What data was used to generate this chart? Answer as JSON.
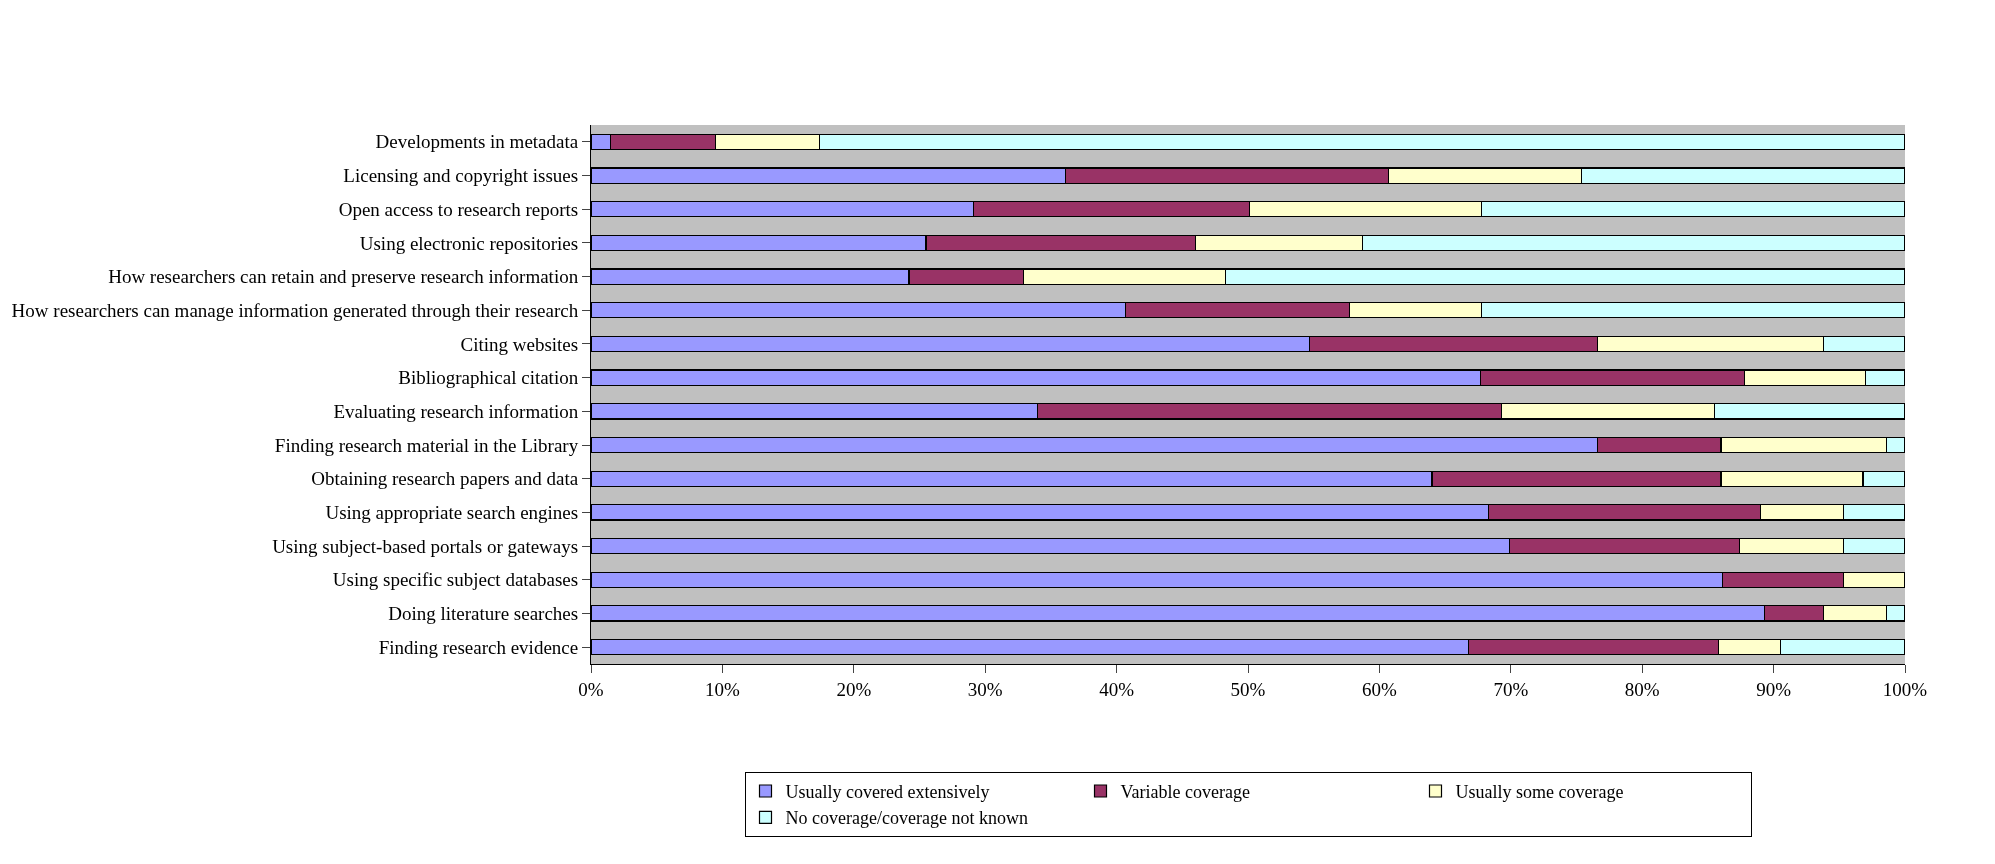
{
  "chart_data": {
    "type": "bar",
    "orientation": "horizontal",
    "stacked": true,
    "categories": [
      "Developments in metadata",
      "Licensing and copyright issues",
      "Open access to research reports",
      "Using electronic repositories",
      "How researchers can retain and preserve research information",
      "How researchers can manage information generated through their research",
      "Citing websites",
      "Bibliographical citation",
      "Evaluating research information",
      "Finding research material in the Library",
      "Obtaining research papers and data",
      "Using appropriate search engines",
      "Using subject-based portals or gateways",
      "Using specific subject databases",
      "Doing literature searches",
      "Finding research evidence"
    ],
    "series": [
      {
        "name": "Usually covered extensively",
        "color": "#9999ff",
        "values": [
          1.5,
          36.1,
          29.1,
          25.5,
          24.2,
          40.7,
          54.7,
          67.7,
          34.0,
          76.6,
          64.0,
          68.3,
          69.9,
          86.1,
          89.3,
          66.8
        ]
      },
      {
        "name": "Variable coverage",
        "color": "#993366",
        "values": [
          8.0,
          24.6,
          21.0,
          20.5,
          8.7,
          17.0,
          21.9,
          20.1,
          35.3,
          9.4,
          22.0,
          20.7,
          17.5,
          9.2,
          4.5,
          19.0
        ]
      },
      {
        "name": "Usually some coverage",
        "color": "#ffffcc",
        "values": [
          7.9,
          14.7,
          17.7,
          12.7,
          15.4,
          10.1,
          17.2,
          9.2,
          16.2,
          12.6,
          10.8,
          6.3,
          7.9,
          4.7,
          4.8,
          4.7
        ]
      },
      {
        "name": "No coverage/coverage not known",
        "color": "#ccffff",
        "values": [
          82.6,
          24.6,
          32.2,
          41.3,
          51.7,
          32.2,
          6.2,
          3.0,
          14.5,
          1.4,
          3.2,
          4.7,
          4.7,
          null,
          1.4,
          9.5
        ]
      }
    ],
    "xlim": [
      0,
      100
    ],
    "xticks": [
      {
        "value": 0,
        "label": "0%"
      },
      {
        "value": 10,
        "label": "10%"
      },
      {
        "value": 20,
        "label": "20%"
      },
      {
        "value": 30,
        "label": "30%"
      },
      {
        "value": 40,
        "label": "40%"
      },
      {
        "value": 50,
        "label": "50%"
      },
      {
        "value": 60,
        "label": "60%"
      },
      {
        "value": 70,
        "label": "70%"
      },
      {
        "value": 80,
        "label": "80%"
      },
      {
        "value": 90,
        "label": "90%"
      },
      {
        "value": 100,
        "label": "100%"
      }
    ],
    "legend": "bottom"
  }
}
